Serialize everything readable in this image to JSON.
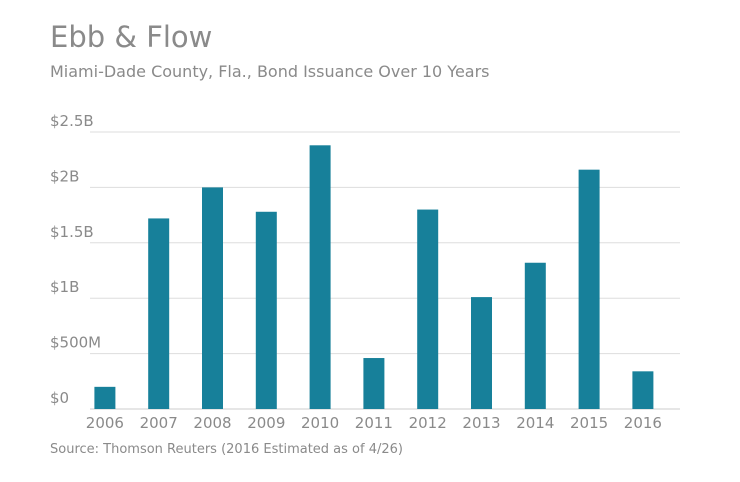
{
  "chart_data": {
    "type": "bar",
    "title": "Ebb & Flow",
    "subtitle": "Miami-Dade County, Fla., Bond Issuance Over 10 Years",
    "source": "Source: Thomson Reuters (2016 Estimated as of 4/26)",
    "xlabel": "",
    "ylabel": "",
    "categories": [
      "2006",
      "2007",
      "2008",
      "2009",
      "2010",
      "2011",
      "2012",
      "2013",
      "2014",
      "2015",
      "2016"
    ],
    "values": [
      0.2,
      1.72,
      2.0,
      1.78,
      2.38,
      0.46,
      1.8,
      1.01,
      1.32,
      2.16,
      0.34
    ],
    "value_unit": "billions of dollars",
    "ylim": [
      0,
      2.5
    ],
    "yticks": [
      0,
      0.5,
      1,
      1.5,
      2,
      2.5
    ],
    "ytick_labels": [
      "$0",
      "$500M",
      "$1B",
      "$1.5B",
      "$2B",
      "$2.5B"
    ],
    "grid": true,
    "legend": "none",
    "bar_color": "#17809a",
    "grid_color": "#dddddd",
    "text_color": "#8a8a8a"
  }
}
